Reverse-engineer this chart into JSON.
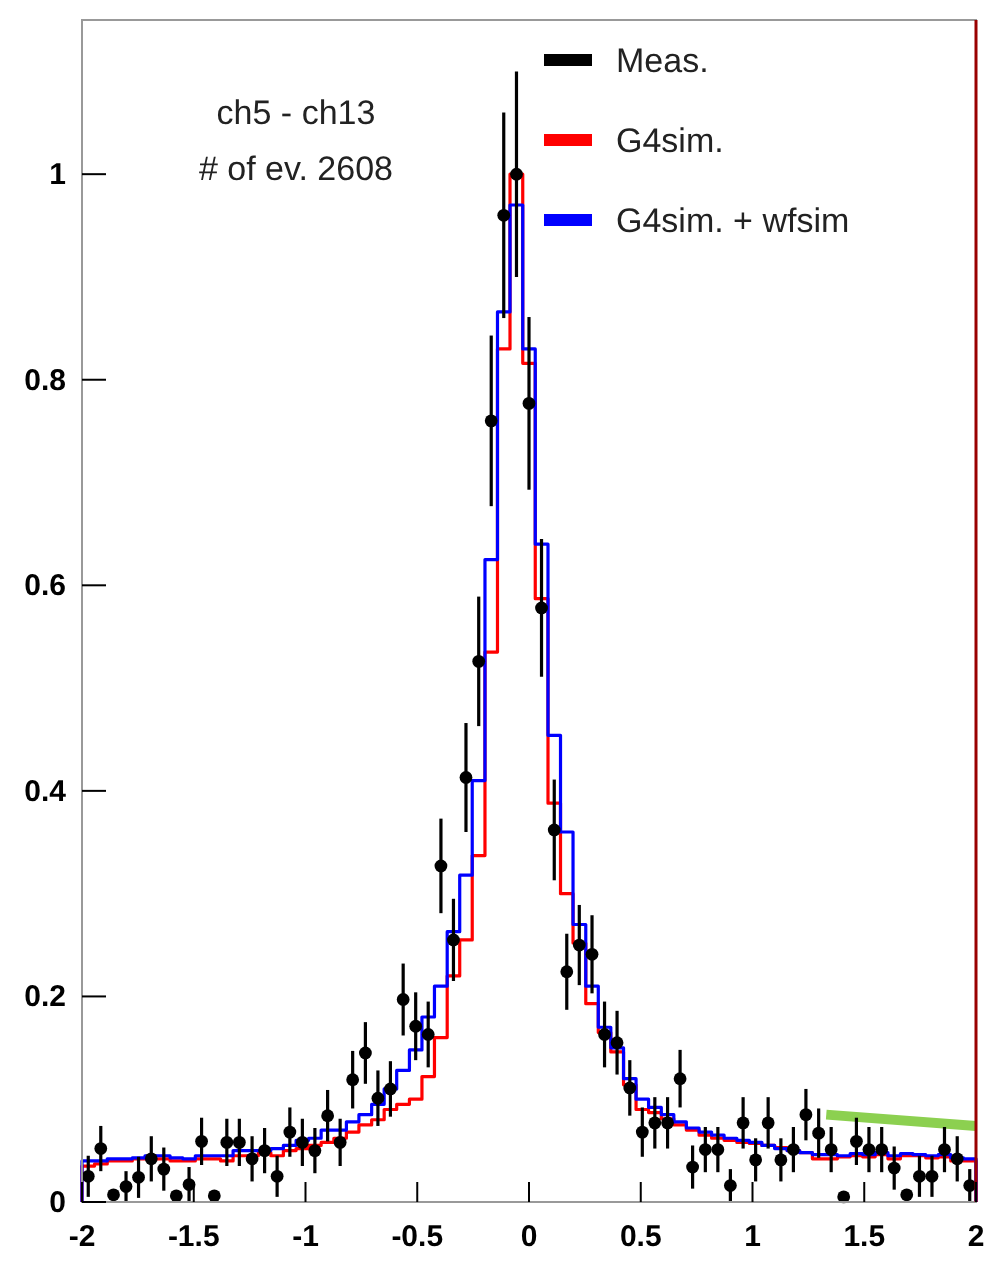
{
  "chart_data": {
    "type": "histogram",
    "bins": [
      -2,
      -1.944,
      -1.887,
      -1.831,
      -1.775,
      -1.718,
      -1.662,
      -1.606,
      -1.549,
      -1.493,
      -1.437,
      -1.38,
      -1.324,
      -1.268,
      -1.211,
      -1.155,
      -1.099,
      -1.042,
      -0.986,
      -0.93,
      -0.873,
      -0.817,
      -0.761,
      -0.704,
      -0.648,
      -0.592,
      -0.535,
      -0.479,
      -0.423,
      -0.366,
      -0.31,
      -0.254,
      -0.197,
      -0.141,
      -0.085,
      -0.028,
      0.028,
      0.085,
      0.141,
      0.197,
      0.254,
      0.31,
      0.366,
      0.423,
      0.479,
      0.535,
      0.592,
      0.648,
      0.704,
      0.761,
      0.817,
      0.873,
      0.93,
      0.986,
      1.042,
      1.099,
      1.155,
      1.211,
      1.268,
      1.324,
      1.38,
      1.437,
      1.493,
      1.549,
      1.606,
      1.662,
      1.718,
      1.775,
      1.831,
      1.887,
      1.944,
      2
    ],
    "series": [
      {
        "name": "Meas.",
        "type": "scatter",
        "color": "#000000",
        "marker": "circle",
        "x": [
          -1.972,
          -1.916,
          -1.859,
          -1.803,
          -1.747,
          -1.69,
          -1.634,
          -1.578,
          -1.521,
          -1.465,
          -1.408,
          -1.352,
          -1.296,
          -1.239,
          -1.183,
          -1.127,
          -1.07,
          -1.014,
          -0.958,
          -0.901,
          -0.845,
          -0.789,
          -0.732,
          -0.676,
          -0.62,
          -0.563,
          -0.507,
          -0.451,
          -0.394,
          -0.338,
          -0.282,
          -0.225,
          -0.169,
          -0.113,
          -0.056,
          0,
          0.056,
          0.113,
          0.169,
          0.225,
          0.282,
          0.338,
          0.394,
          0.451,
          0.507,
          0.563,
          0.62,
          0.676,
          0.732,
          0.789,
          0.845,
          0.901,
          0.958,
          1.014,
          1.07,
          1.127,
          1.183,
          1.239,
          1.296,
          1.352,
          1.408,
          1.465,
          1.521,
          1.578,
          1.634,
          1.69,
          1.747,
          1.803,
          1.859,
          1.916,
          1.972
        ],
        "values": [
          0.025,
          0.052,
          0.007,
          0.015,
          0.024,
          0.042,
          0.032,
          0.006,
          0.017,
          0.059,
          0.006,
          0.058,
          0.058,
          0.042,
          0.05,
          0.025,
          0.068,
          0.058,
          0.05,
          0.084,
          0.058,
          0.119,
          0.145,
          0.101,
          0.11,
          0.197,
          0.171,
          0.163,
          0.327,
          0.255,
          0.413,
          0.526,
          0.76,
          0.96,
          1.0,
          0.777,
          0.578,
          0.362,
          0.224,
          0.25,
          0.241,
          0.163,
          0.155,
          0.111,
          0.068,
          0.077,
          0.077,
          0.12,
          0.034,
          0.051,
          0.051,
          0.016,
          0.077,
          0.041,
          0.077,
          0.041,
          0.051,
          0.085,
          0.067,
          0.051,
          0.005,
          0.059,
          0.051,
          0.051,
          0.033,
          0.007,
          0.025,
          0.025,
          0.051,
          0.042,
          0.016
        ],
        "errors": [
          0.02,
          0.022,
          null,
          0.015,
          0.02,
          0.022,
          0.021,
          null,
          0.017,
          0.023,
          null,
          0.023,
          0.023,
          0.022,
          0.022,
          0.02,
          0.024,
          0.023,
          0.022,
          0.025,
          0.023,
          0.028,
          0.03,
          0.027,
          0.027,
          0.035,
          0.033,
          0.032,
          0.046,
          0.04,
          0.053,
          0.063,
          0.083,
          0.1,
          0.1,
          0.084,
          0.067,
          0.049,
          0.037,
          0.039,
          0.038,
          0.032,
          0.031,
          0.027,
          0.024,
          0.025,
          0.025,
          0.028,
          0.021,
          0.022,
          0.022,
          0.016,
          0.025,
          0.021,
          0.025,
          0.021,
          0.022,
          0.025,
          0.024,
          0.022,
          0.005,
          0.023,
          0.022,
          0.022,
          0.021,
          null,
          0.02,
          0.02,
          0.022,
          0.022,
          0.016
        ]
      },
      {
        "name": "G4sim.",
        "type": "histogram",
        "color": "#ff0000",
        "values": [
          0.035,
          0.037,
          0.04,
          0.04,
          0.042,
          0.042,
          0.042,
          0.04,
          0.04,
          0.042,
          0.042,
          0.04,
          0.045,
          0.045,
          0.048,
          0.045,
          0.05,
          0.052,
          0.055,
          0.058,
          0.062,
          0.068,
          0.075,
          0.08,
          0.09,
          0.095,
          0.1,
          0.122,
          0.16,
          0.22,
          0.255,
          0.337,
          0.535,
          0.83,
          1.0,
          0.816,
          0.587,
          0.388,
          0.3,
          0.252,
          0.193,
          0.165,
          0.146,
          0.114,
          0.09,
          0.087,
          0.081,
          0.075,
          0.07,
          0.065,
          0.062,
          0.06,
          0.058,
          0.057,
          0.055,
          0.053,
          0.05,
          0.048,
          0.042,
          0.042,
          0.044,
          0.045,
          0.044,
          0.046,
          0.042,
          0.045,
          0.045,
          0.043,
          0.044,
          0.04,
          0.04
        ]
      },
      {
        "name": "G4sim. + wfsim",
        "type": "histogram",
        "color": "#0000ff",
        "values": [
          0.04,
          0.04,
          0.042,
          0.042,
          0.043,
          0.045,
          0.045,
          0.043,
          0.042,
          0.045,
          0.045,
          0.045,
          0.05,
          0.05,
          0.05,
          0.052,
          0.055,
          0.06,
          0.062,
          0.07,
          0.07,
          0.078,
          0.085,
          0.095,
          0.11,
          0.128,
          0.148,
          0.18,
          0.21,
          0.263,
          0.318,
          0.41,
          0.625,
          0.866,
          0.97,
          0.83,
          0.64,
          0.454,
          0.36,
          0.27,
          0.21,
          0.17,
          0.15,
          0.12,
          0.1,
          0.092,
          0.085,
          0.078,
          0.072,
          0.068,
          0.065,
          0.062,
          0.06,
          0.058,
          0.055,
          0.052,
          0.05,
          0.048,
          0.046,
          0.046,
          0.045,
          0.047,
          0.046,
          0.048,
          0.045,
          0.047,
          0.046,
          0.045,
          0.046,
          0.043,
          0.042
        ]
      },
      {
        "type": "line",
        "color": "#8cd050",
        "x": [
          1.33,
          2.0
        ],
        "values": [
          0.085,
          0.074
        ]
      }
    ],
    "xlim": [
      -2,
      2
    ],
    "xticks": [
      -2,
      -1.5,
      -1,
      -0.5,
      0,
      0.5,
      1,
      1.5,
      2
    ],
    "ylim": [
      0,
      1.15
    ],
    "yticks": [
      0,
      0.2,
      0.4,
      0.6,
      0.8,
      1
    ],
    "grid": false,
    "legend": "top right",
    "annotations": [
      "ch5 - ch13",
      "# of ev. 2608"
    ]
  }
}
